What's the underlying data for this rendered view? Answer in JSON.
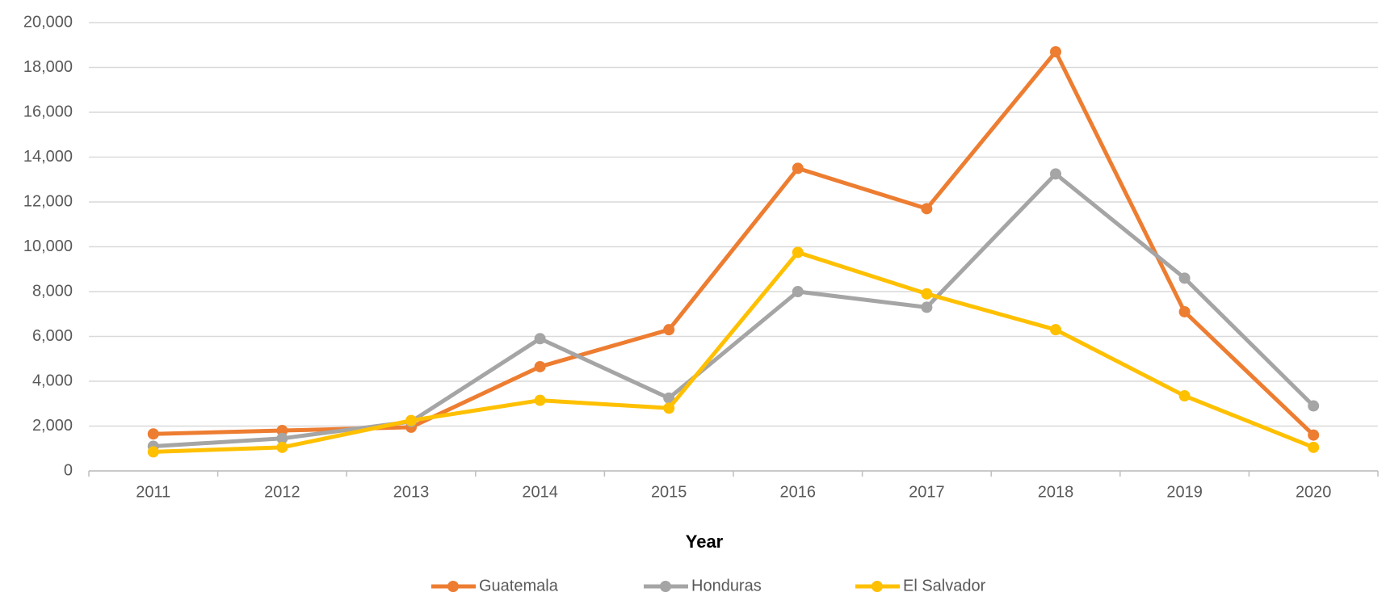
{
  "chart_data": {
    "type": "line",
    "xlabel": "Year",
    "categories": [
      "2011",
      "2012",
      "2013",
      "2014",
      "2015",
      "2016",
      "2017",
      "2018",
      "2019",
      "2020"
    ],
    "series": [
      {
        "name": "Guatemala",
        "color": "#ed7d31",
        "values": [
          1650,
          1800,
          1950,
          4650,
          6300,
          13500,
          11700,
          18700,
          7100,
          1600
        ]
      },
      {
        "name": "Honduras",
        "color": "#a5a5a5",
        "values": [
          1100,
          1450,
          2200,
          5900,
          3250,
          8000,
          7300,
          13250,
          8600,
          2900
        ]
      },
      {
        "name": "El Salvador",
        "color": "#ffc000",
        "values": [
          850,
          1050,
          2250,
          3150,
          2800,
          9750,
          7900,
          6300,
          3350,
          1050
        ]
      }
    ],
    "ylim": [
      0,
      20000
    ],
    "yticks": [
      0,
      {
        "value": 2000,
        "label": "2,000"
      },
      {
        "value": 4000,
        "label": "4,000"
      },
      {
        "value": 6000,
        "label": "6,000"
      },
      {
        "value": 8000,
        "label": "8,000"
      },
      {
        "value": 10000,
        "label": "10,000"
      },
      {
        "value": 12000,
        "label": "12,000"
      },
      {
        "value": 14000,
        "label": "14,000"
      },
      {
        "value": 16000,
        "label": "16,000"
      },
      {
        "value": 18000,
        "label": "18,000"
      },
      {
        "value": 20000,
        "label": "20,000"
      }
    ],
    "grid": true,
    "legend": "bottom"
  }
}
